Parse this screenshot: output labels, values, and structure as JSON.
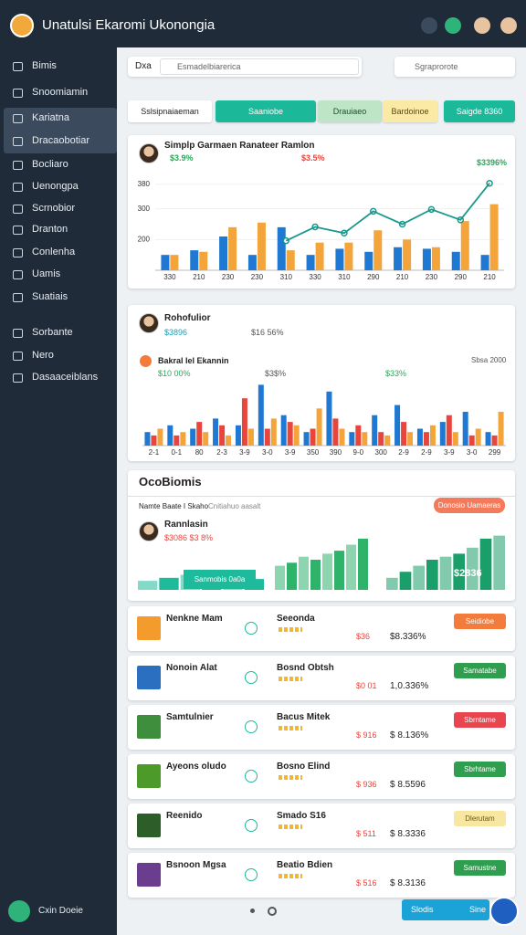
{
  "header": {
    "title": "Unatulsi Ekaromi Ukonongia"
  },
  "sidebar": {
    "items": [
      "Bimis",
      "Snoomiamin",
      "Kariatna",
      "Dracaobotiar",
      "Bocliaro",
      "Uenongpa",
      "Scrnobior",
      "Dranton",
      "Conlenha",
      "Uamis",
      "Suatiais",
      "Sorbante",
      "Nero",
      "Dasaaceiblans"
    ],
    "footer": "Cxin Doeie"
  },
  "toolbar": {
    "label": "Dxa",
    "search": "Esmadelbiarerica",
    "filter": "Sgraprorote"
  },
  "filters": [
    "Sslsipnaiaeman",
    "Saaniobe",
    "Drauiaeo",
    "Bardoinoe",
    "Saigde 8360"
  ],
  "chart1": {
    "type": "bar",
    "title": "Simplp Garmaen Ranateer Ramlon",
    "stats": [
      "$3.9%",
      "$3.5%",
      "$3396%"
    ],
    "categories": [
      "330",
      "210",
      "230",
      "230",
      "310",
      "330",
      "310",
      "290",
      "210",
      "230",
      "290",
      "210"
    ],
    "series": [
      {
        "type": "bar",
        "color": "#1f78d1",
        "values": [
          150,
          165,
          210,
          150,
          240,
          150,
          170,
          160,
          175,
          170,
          160,
          150
        ]
      },
      {
        "type": "bar",
        "color": "#f3a53c",
        "values": [
          150,
          160,
          240,
          255,
          165,
          190,
          190,
          230,
          200,
          175,
          260,
          315
        ]
      },
      {
        "type": "line",
        "color": "#17998a",
        "values": [
          null,
          null,
          null,
          null,
          196,
          241,
          221,
          292,
          250,
          298,
          264,
          383
        ]
      }
    ],
    "ylim": [
      100,
      400
    ],
    "yticks": [
      380,
      300,
      200
    ]
  },
  "chart2": {
    "type": "bar",
    "title": "Rohofulior",
    "stats": [
      "$3896",
      "$16 56%"
    ],
    "subtitle": "Bakral Iel Ekannin",
    "substats": [
      "$10 00%",
      "$3$%",
      "$33%"
    ],
    "note": "Sbsa 2000",
    "categories": [
      "2-1",
      "0-1",
      "80",
      "2-3",
      "3-9",
      "3-0",
      "3-9",
      "350",
      "390",
      "9-0",
      "300",
      "2-9",
      "2-9",
      "3-9",
      "3-0",
      "299"
    ],
    "series": [
      {
        "color": "#1f78d1",
        "values": [
          20,
          30,
          25,
          40,
          30,
          90,
          45,
          20,
          80,
          20,
          45,
          60,
          25,
          35,
          50,
          20
        ]
      },
      {
        "color": "#e8453c",
        "values": [
          15,
          15,
          35,
          30,
          70,
          25,
          35,
          25,
          40,
          30,
          20,
          35,
          20,
          45,
          15,
          15
        ]
      },
      {
        "color": "#f3a53c",
        "values": [
          25,
          20,
          20,
          15,
          25,
          40,
          30,
          55,
          25,
          20,
          15,
          20,
          30,
          20,
          25,
          50
        ]
      }
    ],
    "ylim": [
      0,
      100
    ]
  },
  "section": {
    "title": "OcoBiomis",
    "label": "Namte Baate I Skaho",
    "sublabel": "Cnitiahuo aasalt",
    "button": "Donosio Uamaeras",
    "person": "Rannlasin",
    "stat": "$3086 $3 8%",
    "action": "Sanmobis 0a0a",
    "total": "$2836",
    "mini_charts": [
      {
        "color": "#1dbb9b",
        "values": [
          15,
          20,
          25,
          20,
          15,
          18
        ]
      },
      {
        "color": "#2fb36b",
        "values": [
          40,
          45,
          55,
          50,
          60,
          65,
          75,
          85
        ]
      },
      {
        "color": "#1a9f6a",
        "values": [
          20,
          30,
          40,
          50,
          55,
          60,
          70,
          85,
          90
        ]
      }
    ],
    "ylim": [
      0,
      100
    ]
  },
  "rows": [
    {
      "name": "Nenkne Mam",
      "category": "Seeonda",
      "stat1": "$36",
      "stat2": "$8.336%",
      "button": "Seidiobe",
      "color": "#f37b3c"
    },
    {
      "name": "Nonoin Alat",
      "category": "Bosnd Obtsh",
      "stat1": "$0 01",
      "stat2": "1,0.336%",
      "button": "Samatabe",
      "color": "#2f9e4f"
    },
    {
      "name": "Samtulnier",
      "category": "Bacus Mitek",
      "stat1": "$ 916",
      "stat2": "$ 8.136%",
      "button": "Sbrntame",
      "color": "#e8454f"
    },
    {
      "name": "Ayeons oludo",
      "category": "Bosno Elind",
      "stat1": "$ 936",
      "stat2": "$ 8.5596",
      "button": "Sbrhtame",
      "color": "#2f9e4f"
    },
    {
      "name": "Reenido",
      "category": "Smado S16",
      "stat1": "$ 511",
      "stat2": "$ 8.3336",
      "button": "Dlerutam",
      "color": "#f8e7a0"
    },
    {
      "name": "Bsnoon Mgsa",
      "category": "Beatio Bdien",
      "stat1": "$ 516",
      "stat2": "$ 8.3136",
      "button": "Samustne",
      "color": "#2f9e4f"
    }
  ],
  "footer": {
    "buttons": [
      "Slodis",
      "Sine"
    ]
  }
}
